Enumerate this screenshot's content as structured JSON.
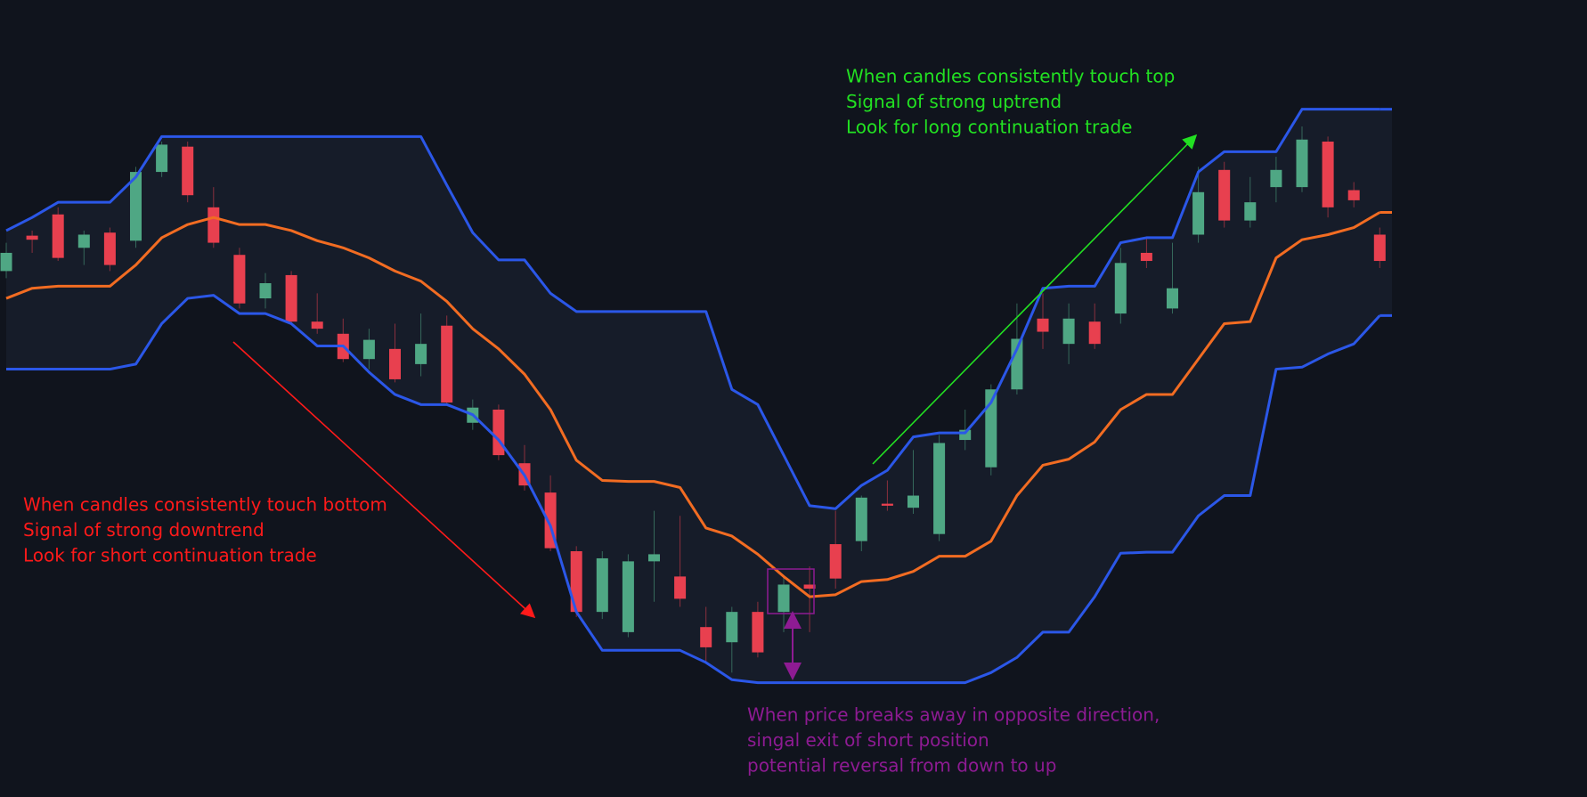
{
  "chart_data": {
    "type": "candlestick",
    "ylim": [
      12,
      800
    ],
    "up_color": "#4fa784",
    "down_color": "#e8404f",
    "open": [
      532,
      567,
      588,
      555,
      570,
      562,
      630,
      655,
      595,
      548,
      505,
      528,
      482,
      470,
      445,
      455,
      440,
      478,
      382,
      395,
      342,
      313,
      255,
      195,
      175,
      245,
      230,
      180,
      165,
      195,
      195,
      222,
      262,
      265,
      302,
      298,
      272,
      365,
      338,
      415,
      485,
      460,
      482,
      490,
      550,
      495,
      568,
      632,
      582,
      615,
      615,
      660,
      612,
      568
    ],
    "high": [
      560,
      572,
      595,
      572,
      575,
      635,
      660,
      660,
      615,
      555,
      530,
      532,
      510,
      485,
      475,
      480,
      490,
      488,
      405,
      400,
      360,
      330,
      260,
      255,
      252,
      295,
      290,
      200,
      200,
      205,
      230,
      240,
      295,
      310,
      325,
      355,
      370,
      395,
      420,
      500,
      510,
      500,
      500,
      555,
      565,
      560,
      635,
      640,
      625,
      645,
      675,
      665,
      620,
      575
    ],
    "low": [
      525,
      550,
      542,
      538,
      532,
      555,
      625,
      600,
      555,
      495,
      495,
      480,
      470,
      442,
      435,
      422,
      428,
      400,
      375,
      345,
      315,
      255,
      190,
      188,
      170,
      205,
      200,
      145,
      135,
      150,
      175,
      175,
      218,
      255,
      295,
      292,
      265,
      355,
      330,
      410,
      455,
      440,
      455,
      480,
      535,
      490,
      560,
      575,
      575,
      600,
      610,
      585,
      595,
      535
    ],
    "close": [
      550,
      563,
      545,
      568,
      538,
      630,
      657,
      607,
      560,
      500,
      520,
      482,
      475,
      445,
      464,
      425,
      460,
      402,
      397,
      350,
      320,
      258,
      195,
      248,
      245,
      252,
      208,
      160,
      195,
      155,
      222,
      218,
      228,
      308,
      300,
      310,
      362,
      375,
      415,
      465,
      472,
      485,
      460,
      540,
      542,
      515,
      610,
      582,
      600,
      632,
      662,
      595,
      602,
      542
    ],
    "upper": {
      "color": "#2b57e8",
      "values": [
        572,
        585,
        600,
        600,
        600,
        625,
        665,
        665,
        665,
        665,
        665,
        665,
        665,
        665,
        665,
        665,
        665,
        617,
        570,
        543,
        543,
        510,
        492,
        492,
        492,
        492,
        492,
        492,
        415,
        400,
        350,
        300,
        297,
        320,
        335,
        368,
        372,
        372,
        402,
        455,
        515,
        517,
        517,
        560,
        565,
        565,
        630,
        650,
        650,
        650,
        692,
        692,
        692,
        692
      ]
    },
    "middle": {
      "color": "#f26c22",
      "values": [
        505,
        515,
        517,
        517,
        517,
        538,
        565,
        578,
        585,
        578,
        578,
        572,
        562,
        555,
        545,
        532,
        522,
        502,
        475,
        455,
        430,
        395,
        345,
        325,
        324,
        324,
        318,
        278,
        270,
        252,
        230,
        210,
        212,
        225,
        227,
        235,
        250,
        250,
        265,
        310,
        340,
        346,
        363,
        395,
        410,
        410,
        445,
        480,
        482,
        545,
        563,
        568,
        575,
        590
      ]
    },
    "lower": {
      "color": "#2b57e8",
      "values": [
        435,
        435,
        435,
        435,
        435,
        440,
        480,
        505,
        508,
        490,
        490,
        480,
        458,
        458,
        432,
        410,
        400,
        400,
        390,
        365,
        330,
        280,
        195,
        157,
        157,
        157,
        157,
        145,
        128,
        125,
        125,
        125,
        125,
        125,
        125,
        125,
        125,
        125,
        135,
        150,
        175,
        175,
        210,
        253,
        254,
        254,
        290,
        310,
        310,
        435,
        437,
        450,
        460,
        488
      ]
    },
    "annotations": [
      {
        "color": "#ff1a1a",
        "lines": [
          "When candles consistently touch bottom",
          "Signal of strong downtrend",
          "Look for short continuation trade"
        ]
      },
      {
        "color": "#22e022",
        "lines": [
          "When candles consistently touch top",
          "Signal of strong uptrend",
          "Look for long continuation trade"
        ]
      },
      {
        "color": "#8e1b93",
        "lines": [
          "When price breaks away in opposite direction,",
          "singal exit of short position",
          "potential reversal from down to up"
        ]
      }
    ]
  }
}
